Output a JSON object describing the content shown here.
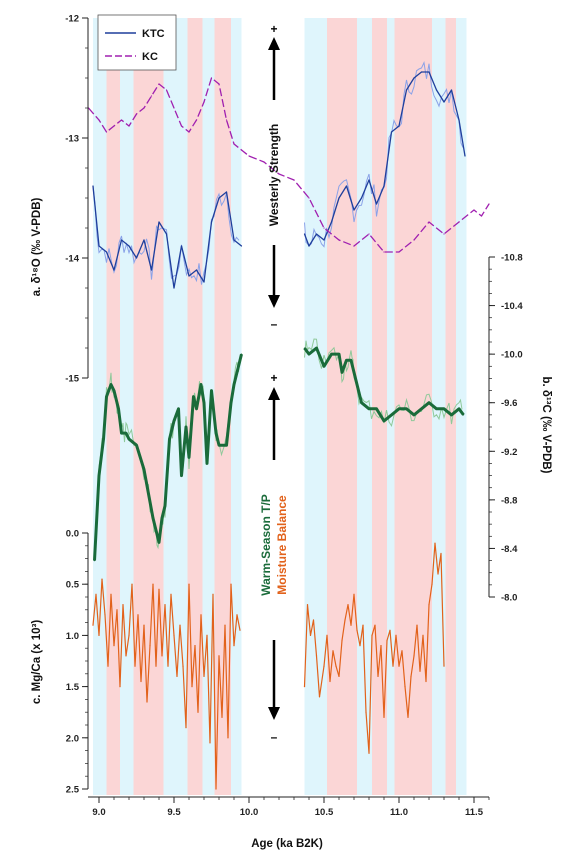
{
  "chart_data": [
    {
      "panel": "a",
      "type": "line",
      "ylabel": "a. δ¹⁸O (‰ V-PDB)",
      "ylim": [
        -15,
        -12
      ],
      "yticks": [
        -15,
        -14,
        -13,
        -12
      ],
      "y_inverted": true,
      "legend": "top-left",
      "series": [
        {
          "name": "KTC",
          "color": "#1f3f9c",
          "style": "solid",
          "x": [
            8.96,
            9.0,
            9.05,
            9.1,
            9.15,
            9.2,
            9.25,
            9.3,
            9.35,
            9.4,
            9.45,
            9.5,
            9.55,
            9.6,
            9.65,
            9.7,
            9.75,
            9.8,
            9.85,
            9.9,
            9.95
          ],
          "y": [
            -13.4,
            -13.9,
            -13.95,
            -14.1,
            -13.85,
            -13.9,
            -14.0,
            -13.85,
            -14.1,
            -13.7,
            -13.8,
            -14.25,
            -13.9,
            -14.15,
            -14.1,
            -14.2,
            -13.7,
            -13.5,
            -13.45,
            -13.85,
            -13.9
          ]
        },
        {
          "name": "KTC",
          "color": "#1f3f9c",
          "style": "solid",
          "x": [
            10.37,
            10.4,
            10.45,
            10.5,
            10.55,
            10.6,
            10.65,
            10.7,
            10.75,
            10.8,
            10.85,
            10.9,
            10.95,
            11.0,
            11.05,
            11.1,
            11.15,
            11.2,
            11.25,
            11.3,
            11.35,
            11.4,
            11.44
          ],
          "y": [
            -13.8,
            -13.9,
            -13.8,
            -13.85,
            -13.7,
            -13.5,
            -13.4,
            -13.6,
            -13.5,
            -13.35,
            -13.55,
            -13.4,
            -12.95,
            -12.9,
            -12.6,
            -12.5,
            -12.45,
            -12.45,
            -12.6,
            -12.7,
            -12.6,
            -12.85,
            -13.15
          ]
        },
        {
          "name": "KC",
          "color": "#a020b0",
          "style": "dashed",
          "x": [
            8.93,
            9.0,
            9.05,
            9.1,
            9.15,
            9.2,
            9.25,
            9.3,
            9.35,
            9.4,
            9.45,
            9.5,
            9.55,
            9.6,
            9.65,
            9.7,
            9.75,
            9.8,
            9.85,
            9.9,
            9.95,
            10.0,
            10.1,
            10.2,
            10.3,
            10.4,
            10.5,
            10.6,
            10.7,
            10.8,
            10.9,
            11.0,
            11.1,
            11.2,
            11.3,
            11.4,
            11.5,
            11.55,
            11.6
          ],
          "y": [
            -12.75,
            -12.85,
            -12.95,
            -12.9,
            -12.85,
            -12.9,
            -12.8,
            -12.75,
            -12.65,
            -12.55,
            -12.6,
            -12.75,
            -12.9,
            -12.95,
            -12.85,
            -12.7,
            -12.5,
            -12.55,
            -12.85,
            -13.05,
            -13.1,
            -13.15,
            -13.2,
            -13.3,
            -13.35,
            -13.5,
            -13.75,
            -13.85,
            -13.9,
            -13.8,
            -13.95,
            -13.95,
            -13.85,
            -13.7,
            -13.8,
            -13.7,
            -13.6,
            -13.65,
            -13.55
          ]
        }
      ]
    },
    {
      "panel": "b",
      "type": "line",
      "ylabel": "b. δ¹³C (‰ V-PDB)",
      "ylim": [
        -10.8,
        -8.0
      ],
      "yticks": [
        -10.8,
        -10.4,
        -10.0,
        -9.6,
        -9.2,
        -8.8,
        -8.4,
        -8.0
      ],
      "y_inverted": true,
      "series": [
        {
          "color": "#1a6b3a",
          "x": [
            8.97,
            9.0,
            9.03,
            9.05,
            9.08,
            9.1,
            9.13,
            9.15,
            9.18,
            9.2,
            9.25,
            9.3,
            9.33,
            9.36,
            9.38,
            9.4,
            9.42,
            9.44,
            9.47,
            9.5,
            9.53,
            9.55,
            9.58,
            9.6,
            9.63,
            9.65,
            9.68,
            9.7,
            9.72,
            9.75,
            9.78,
            9.8,
            9.85,
            9.88,
            9.9,
            9.93,
            9.95
          ],
          "y": [
            -8.3,
            -9.0,
            -9.3,
            -9.65,
            -9.75,
            -9.7,
            -9.55,
            -9.35,
            -9.35,
            -9.3,
            -9.25,
            -9.05,
            -8.85,
            -8.65,
            -8.55,
            -8.45,
            -8.65,
            -8.75,
            -9.3,
            -9.45,
            -9.55,
            -9.0,
            -9.4,
            -9.15,
            -9.65,
            -9.55,
            -9.75,
            -9.6,
            -9.1,
            -9.7,
            -9.35,
            -9.25,
            -9.25,
            -9.6,
            -9.75,
            -9.9,
            -10.0
          ]
        },
        {
          "color": "#1a6b3a",
          "x": [
            10.37,
            10.4,
            10.45,
            10.5,
            10.55,
            10.6,
            10.62,
            10.65,
            10.68,
            10.7,
            10.75,
            10.8,
            10.85,
            10.9,
            10.95,
            11.0,
            11.05,
            11.1,
            11.15,
            11.2,
            11.25,
            11.3,
            11.35,
            11.4,
            11.43
          ],
          "y": [
            -10.05,
            -10.0,
            -10.05,
            -9.9,
            -10.0,
            -10.0,
            -9.85,
            -9.95,
            -9.95,
            -9.85,
            -9.6,
            -9.55,
            -9.55,
            -9.45,
            -9.5,
            -9.55,
            -9.55,
            -9.5,
            -9.55,
            -9.6,
            -9.55,
            -9.55,
            -9.5,
            -9.55,
            -9.5
          ]
        }
      ]
    },
    {
      "panel": "c",
      "type": "line",
      "ylabel": "c. Mg/Ca (x 10³)",
      "ylim": [
        0.0,
        2.5
      ],
      "yticks": [
        0.0,
        0.5,
        1.0,
        1.5,
        2.0,
        2.5
      ],
      "y_inverted": true,
      "series": [
        {
          "color": "#e2621b",
          "x": [
            8.96,
            8.98,
            9.0,
            9.02,
            9.04,
            9.06,
            9.08,
            9.1,
            9.12,
            9.14,
            9.16,
            9.18,
            9.2,
            9.22,
            9.24,
            9.26,
            9.28,
            9.3,
            9.32,
            9.34,
            9.36,
            9.38,
            9.4,
            9.42,
            9.44,
            9.46,
            9.48,
            9.5,
            9.52,
            9.54,
            9.56,
            9.58,
            9.6,
            9.62,
            9.64,
            9.66,
            9.68,
            9.7,
            9.72,
            9.74,
            9.76,
            9.78,
            9.8,
            9.82,
            9.84,
            9.86,
            9.88,
            9.9,
            9.92,
            9.94
          ],
          "y": [
            0.9,
            0.6,
            1.0,
            0.45,
            0.8,
            1.3,
            0.6,
            1.1,
            0.75,
            1.5,
            0.7,
            1.2,
            1.0,
            0.5,
            1.3,
            0.8,
            1.45,
            0.9,
            1.65,
            1.1,
            0.5,
            1.3,
            0.55,
            1.2,
            0.7,
            1.3,
            0.6,
            1.0,
            1.4,
            0.9,
            1.3,
            1.9,
            0.5,
            1.5,
            1.1,
            1.75,
            0.8,
            1.4,
            1.0,
            2.05,
            0.6,
            2.5,
            1.2,
            1.8,
            0.9,
            2.0,
            0.5,
            1.1,
            0.8,
            0.95
          ]
        },
        {
          "color": "#e2621b",
          "x": [
            10.37,
            10.39,
            10.41,
            10.43,
            10.45,
            10.47,
            10.5,
            10.52,
            10.54,
            10.56,
            10.58,
            10.6,
            10.62,
            10.64,
            10.66,
            10.68,
            10.7,
            10.72,
            10.74,
            10.76,
            10.78,
            10.8,
            10.82,
            10.84,
            10.86,
            10.88,
            10.9,
            10.92,
            10.94,
            10.96,
            10.98,
            11.0,
            11.02,
            11.04,
            11.06,
            11.08,
            11.1,
            11.12,
            11.14,
            11.16,
            11.18,
            11.2,
            11.22,
            11.24,
            11.26,
            11.28,
            11.3
          ],
          "y": [
            1.5,
            0.7,
            1.0,
            0.85,
            1.2,
            1.6,
            1.3,
            1.0,
            1.45,
            1.15,
            1.3,
            1.4,
            1.05,
            0.85,
            0.7,
            0.9,
            0.6,
            0.95,
            1.1,
            0.9,
            1.75,
            2.15,
            1.0,
            0.9,
            1.4,
            1.1,
            1.8,
            1.05,
            0.95,
            1.3,
            1.0,
            1.3,
            1.15,
            1.5,
            1.8,
            1.4,
            1.2,
            0.9,
            1.35,
            1.0,
            1.45,
            0.7,
            0.5,
            0.1,
            0.4,
            0.2,
            1.3
          ]
        }
      ]
    }
  ],
  "shared_x": {
    "label": "Age (ka B2K)",
    "xlim": [
      8.93,
      11.6
    ],
    "ticks": [
      9.0,
      9.5,
      10.0,
      10.5,
      11.0,
      11.5
    ],
    "tick_labels": [
      "9.0",
      "9.5",
      "10.0",
      "10.5",
      "11.0",
      "11.5"
    ]
  },
  "shading": {
    "cyan_color": "#dff5fc",
    "pink_color": "#fbd6d6",
    "bands": [
      {
        "start": 8.96,
        "end": 9.05,
        "color": "cyan"
      },
      {
        "start": 9.05,
        "end": 9.14,
        "color": "pink"
      },
      {
        "start": 9.14,
        "end": 9.23,
        "color": "cyan"
      },
      {
        "start": 9.23,
        "end": 9.43,
        "color": "pink"
      },
      {
        "start": 9.43,
        "end": 9.59,
        "color": "cyan"
      },
      {
        "start": 9.59,
        "end": 9.69,
        "color": "pink"
      },
      {
        "start": 9.69,
        "end": 9.77,
        "color": "cyan"
      },
      {
        "start": 9.77,
        "end": 9.88,
        "color": "pink"
      },
      {
        "start": 9.88,
        "end": 9.95,
        "color": "cyan"
      },
      {
        "start": 10.37,
        "end": 10.52,
        "color": "cyan"
      },
      {
        "start": 10.52,
        "end": 10.72,
        "color": "pink"
      },
      {
        "start": 10.72,
        "end": 10.82,
        "color": "cyan"
      },
      {
        "start": 10.82,
        "end": 10.92,
        "color": "pink"
      },
      {
        "start": 10.92,
        "end": 10.97,
        "color": "cyan"
      },
      {
        "start": 10.97,
        "end": 11.22,
        "color": "pink"
      },
      {
        "start": 11.22,
        "end": 11.31,
        "color": "cyan"
      },
      {
        "start": 11.31,
        "end": 11.38,
        "color": "pink"
      },
      {
        "start": 11.38,
        "end": 11.45,
        "color": "cyan"
      }
    ]
  },
  "annotations": {
    "plus": "+",
    "minus": "–",
    "westerly": "Westerly Strength",
    "warm_season": "Warm-Season T/P",
    "moisture": "Moisture Balance",
    "westerly_color": "#111111",
    "warm_season_color": "#1a6b3a",
    "moisture_color": "#e2621b"
  }
}
